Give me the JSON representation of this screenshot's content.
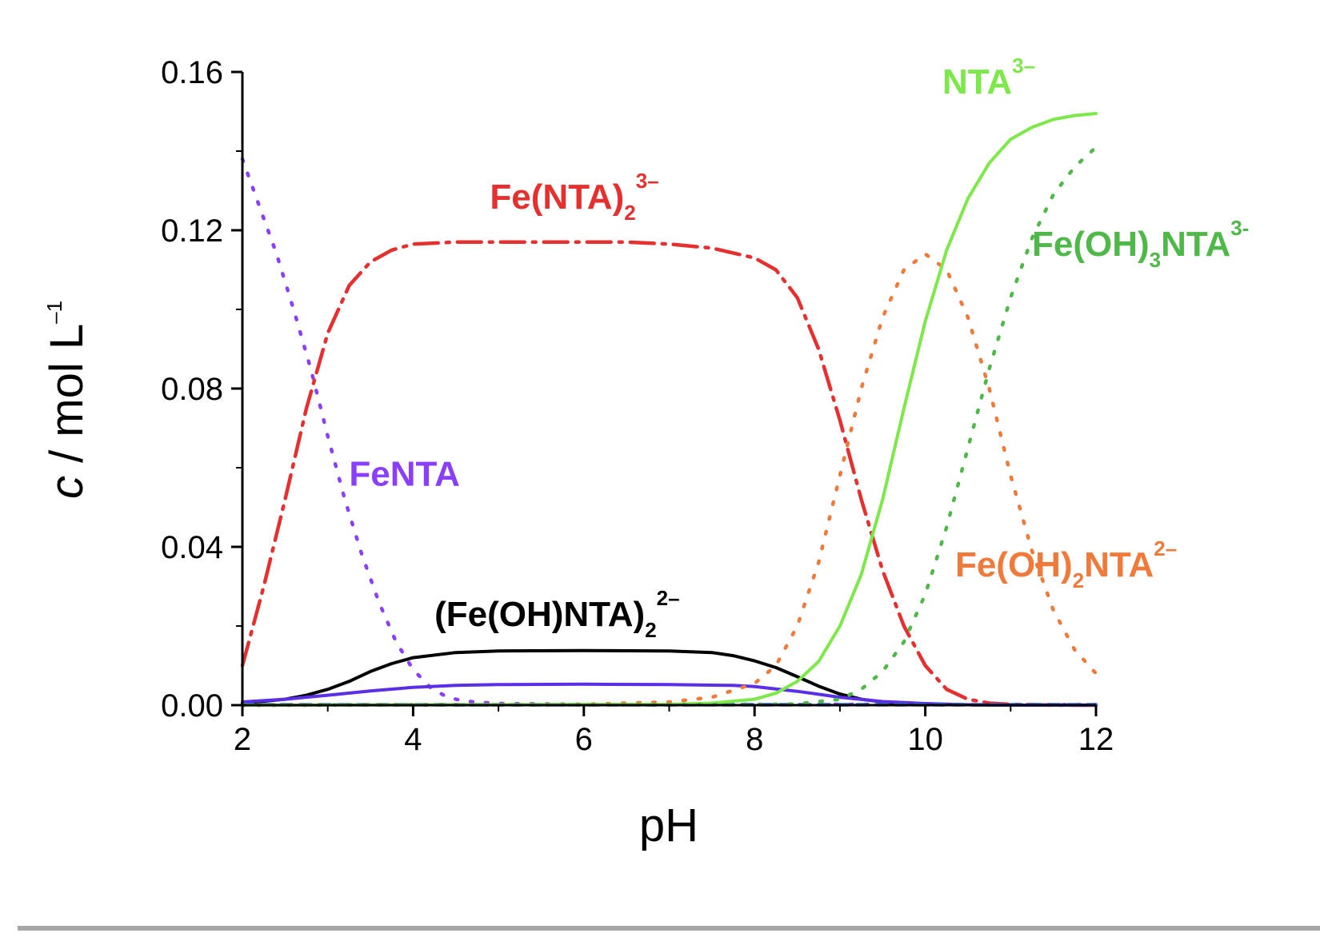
{
  "chart_data": {
    "type": "line",
    "title": "",
    "xlabel": "pH",
    "ylabel_italic": "c",
    "ylabel_rest": " / mol L",
    "ylabel_sup": "–1",
    "xlim": [
      2,
      12
    ],
    "ylim": [
      0,
      0.16
    ],
    "xticks": [
      {
        "v": 2,
        "label": "2"
      },
      {
        "v": 4,
        "label": "4"
      },
      {
        "v": 6,
        "label": "6"
      },
      {
        "v": 8,
        "label": "8"
      },
      {
        "v": 10,
        "label": "10"
      },
      {
        "v": 12,
        "label": "12"
      }
    ],
    "yticks": [
      {
        "v": 0,
        "label": "0.00"
      },
      {
        "v": 0.04,
        "label": "0.04"
      },
      {
        "v": 0.08,
        "label": "0.08"
      },
      {
        "v": 0.12,
        "label": "0.12"
      },
      {
        "v": 0.16,
        "label": "0.16"
      }
    ],
    "grid": false,
    "legend": "inline labels",
    "series": [
      {
        "label": {
          "main": "FeNTA",
          "sub": "",
          "after": "",
          "sup": ""
        },
        "label_pos": {
          "x": 3.25,
          "y": 0.0555
        },
        "color": "#8a3ffc",
        "style": "dotted",
        "x": [
          2,
          2.2,
          2.4,
          2.6,
          2.8,
          3.0,
          3.2,
          3.4,
          3.6,
          3.8,
          4.0,
          4.2,
          4.4,
          4.6,
          5.0,
          6,
          7,
          8,
          9,
          10,
          11,
          12
        ],
        "y": [
          0.138,
          0.126,
          0.114,
          0.1,
          0.085,
          0.068,
          0.052,
          0.038,
          0.026,
          0.016,
          0.009,
          0.0045,
          0.002,
          0.001,
          0.0004,
          0.0002,
          0.0002,
          0.0002,
          0.0002,
          0.0001,
          0.0001,
          0.0001
        ]
      },
      {
        "label": {
          "main": "Fe(NTA)",
          "sub": "2",
          "after": "",
          "sup": "3–"
        },
        "label_pos": {
          "x": 4.9,
          "y": 0.1255
        },
        "color": "#e63030",
        "style": "dashdot",
        "x": [
          2,
          2.25,
          2.5,
          2.75,
          3.0,
          3.25,
          3.5,
          3.75,
          4.0,
          4.5,
          5,
          5.5,
          6,
          6.5,
          7,
          7.5,
          8,
          8.25,
          8.5,
          8.75,
          9.0,
          9.25,
          9.5,
          9.75,
          10.0,
          10.25,
          10.5,
          10.75,
          11,
          11.5,
          12
        ],
        "y": [
          0.01,
          0.03,
          0.052,
          0.075,
          0.094,
          0.106,
          0.112,
          0.115,
          0.1165,
          0.117,
          0.117,
          0.117,
          0.117,
          0.117,
          0.1165,
          0.1155,
          0.113,
          0.11,
          0.103,
          0.09,
          0.072,
          0.052,
          0.034,
          0.02,
          0.01,
          0.004,
          0.0015,
          0.0005,
          0.0002,
          0,
          0
        ]
      },
      {
        "label": {
          "main": "(Fe(OH)NTA)",
          "sub": "2",
          "after": "",
          "sup": "2–"
        },
        "label_pos": {
          "x": 4.25,
          "y": 0.02
        },
        "color": "#000000",
        "style": "solid",
        "x": [
          2,
          2.5,
          2.75,
          3.0,
          3.25,
          3.5,
          3.75,
          4.0,
          4.5,
          5,
          6,
          7,
          7.5,
          7.75,
          8.0,
          8.25,
          8.5,
          8.75,
          9.0,
          9.25,
          9.5,
          10,
          10.5,
          11,
          12
        ],
        "y": [
          0.0005,
          0.0015,
          0.0025,
          0.004,
          0.006,
          0.0085,
          0.0105,
          0.012,
          0.0133,
          0.0137,
          0.0138,
          0.0137,
          0.0133,
          0.0125,
          0.0112,
          0.0095,
          0.0072,
          0.0048,
          0.0028,
          0.0015,
          0.0008,
          0.0003,
          0.0001,
          0,
          0
        ]
      },
      {
        "label": {
          "main": "",
          "sub": "",
          "after": "",
          "sup": ""
        },
        "label_pos": {
          "x": 0,
          "y": 0
        },
        "color": "#5b2fe6",
        "style": "solid",
        "x": [
          2,
          2.5,
          3.0,
          3.5,
          4.0,
          4.5,
          5,
          6,
          7,
          7.75,
          8.0,
          8.5,
          9.0,
          9.5,
          10,
          10.5,
          11,
          12
        ],
        "y": [
          0.0008,
          0.0015,
          0.0025,
          0.0036,
          0.0045,
          0.005,
          0.0052,
          0.0053,
          0.0052,
          0.005,
          0.0047,
          0.0035,
          0.002,
          0.0009,
          0.0004,
          0.0001,
          0,
          0
        ]
      },
      {
        "label": {
          "main": "",
          "sub": "",
          "after": "",
          "sup": ""
        },
        "label_pos": {
          "x": 0,
          "y": 0
        },
        "color": "#2f6fd6",
        "style": "dashed",
        "x": [
          2,
          4,
          6,
          8,
          10,
          12
        ],
        "y": [
          0.0001,
          0.0001,
          0.0001,
          0.0001,
          0.0001,
          0.0001
        ]
      },
      {
        "label": {
          "main": "Fe(OH)",
          "sub": "2",
          "after": "NTA",
          "sup": "2–"
        },
        "label_pos": {
          "x": 10.35,
          "y": 0.0325
        },
        "color": "#f07a3a",
        "style": "dotted",
        "x": [
          2,
          6,
          7,
          7.5,
          8.0,
          8.25,
          8.5,
          8.75,
          9.0,
          9.25,
          9.5,
          9.75,
          10.0,
          10.25,
          10.5,
          10.75,
          11.0,
          11.25,
          11.5,
          11.75,
          12.0
        ],
        "y": [
          0,
          0.0002,
          0.0008,
          0.002,
          0.0055,
          0.01,
          0.02,
          0.036,
          0.058,
          0.08,
          0.098,
          0.11,
          0.114,
          0.11,
          0.098,
          0.08,
          0.058,
          0.039,
          0.024,
          0.014,
          0.008
        ]
      },
      {
        "label": {
          "main": "NTA",
          "sub": "",
          "after": "",
          "sup": "3–"
        },
        "label_pos": {
          "x": 10.2,
          "y": 0.1545
        },
        "color": "#7de84a",
        "style": "solid",
        "x": [
          2,
          7,
          7.5,
          8.0,
          8.25,
          8.5,
          8.75,
          9.0,
          9.25,
          9.5,
          9.75,
          10.0,
          10.25,
          10.5,
          10.75,
          11.0,
          11.25,
          11.5,
          11.75,
          12.0
        ],
        "y": [
          0,
          0.0002,
          0.0005,
          0.0015,
          0.003,
          0.006,
          0.011,
          0.02,
          0.033,
          0.052,
          0.075,
          0.097,
          0.115,
          0.128,
          0.137,
          0.143,
          0.146,
          0.148,
          0.149,
          0.1495
        ]
      },
      {
        "label": {
          "main": "Fe(OH)",
          "sub": "3",
          "after": "NTA",
          "sup": "3-"
        },
        "label_pos": {
          "x": 11.25,
          "y": 0.1135
        },
        "color": "#4fb848",
        "style": "dotted",
        "x": [
          2,
          8,
          8.5,
          9.0,
          9.25,
          9.5,
          9.75,
          10.0,
          10.25,
          10.5,
          10.75,
          11.0,
          11.25,
          11.5,
          11.75,
          12.0
        ],
        "y": [
          0,
          0.0001,
          0.0003,
          0.0015,
          0.004,
          0.0085,
          0.016,
          0.028,
          0.045,
          0.065,
          0.085,
          0.103,
          0.118,
          0.129,
          0.136,
          0.141
        ]
      }
    ]
  }
}
